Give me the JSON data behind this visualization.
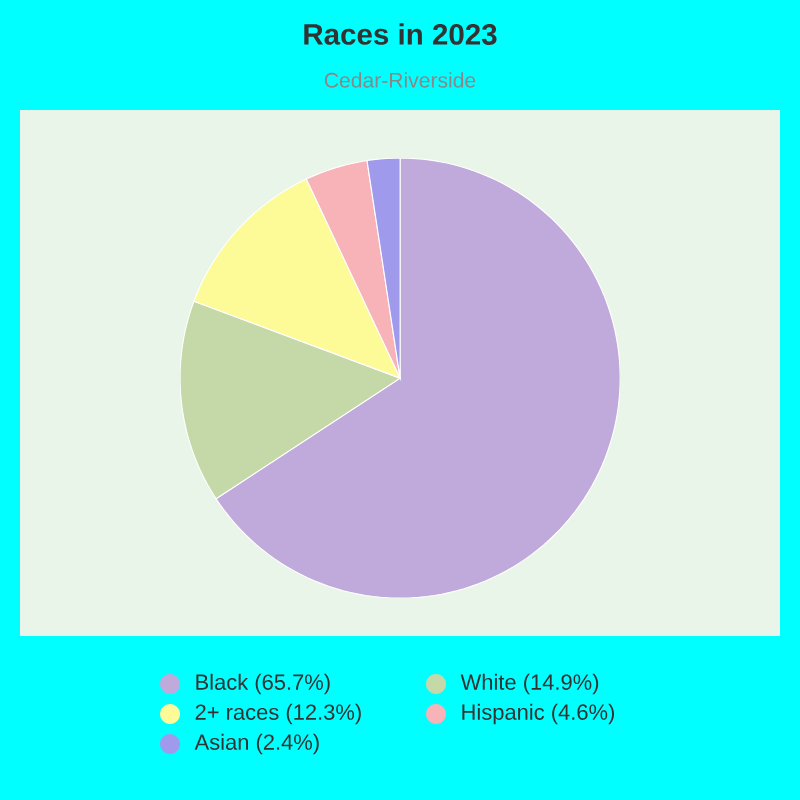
{
  "chart_data": {
    "type": "pie",
    "title": "Races in 2023",
    "subtitle": "Cedar-Riverside",
    "categories": [
      "Black (65.7%)",
      "White (14.9%)",
      "2+ races (12.3%)",
      "Hispanic (4.6%)",
      "Asian (2.4%)"
    ],
    "values": [
      65.7,
      14.9,
      12.3,
      4.6,
      2.4
    ],
    "colors": [
      "#c0a9db",
      "#c5d9a8",
      "#fdfa98",
      "#f7b3b7",
      "#a09aed"
    ],
    "legend": "bottom"
  }
}
